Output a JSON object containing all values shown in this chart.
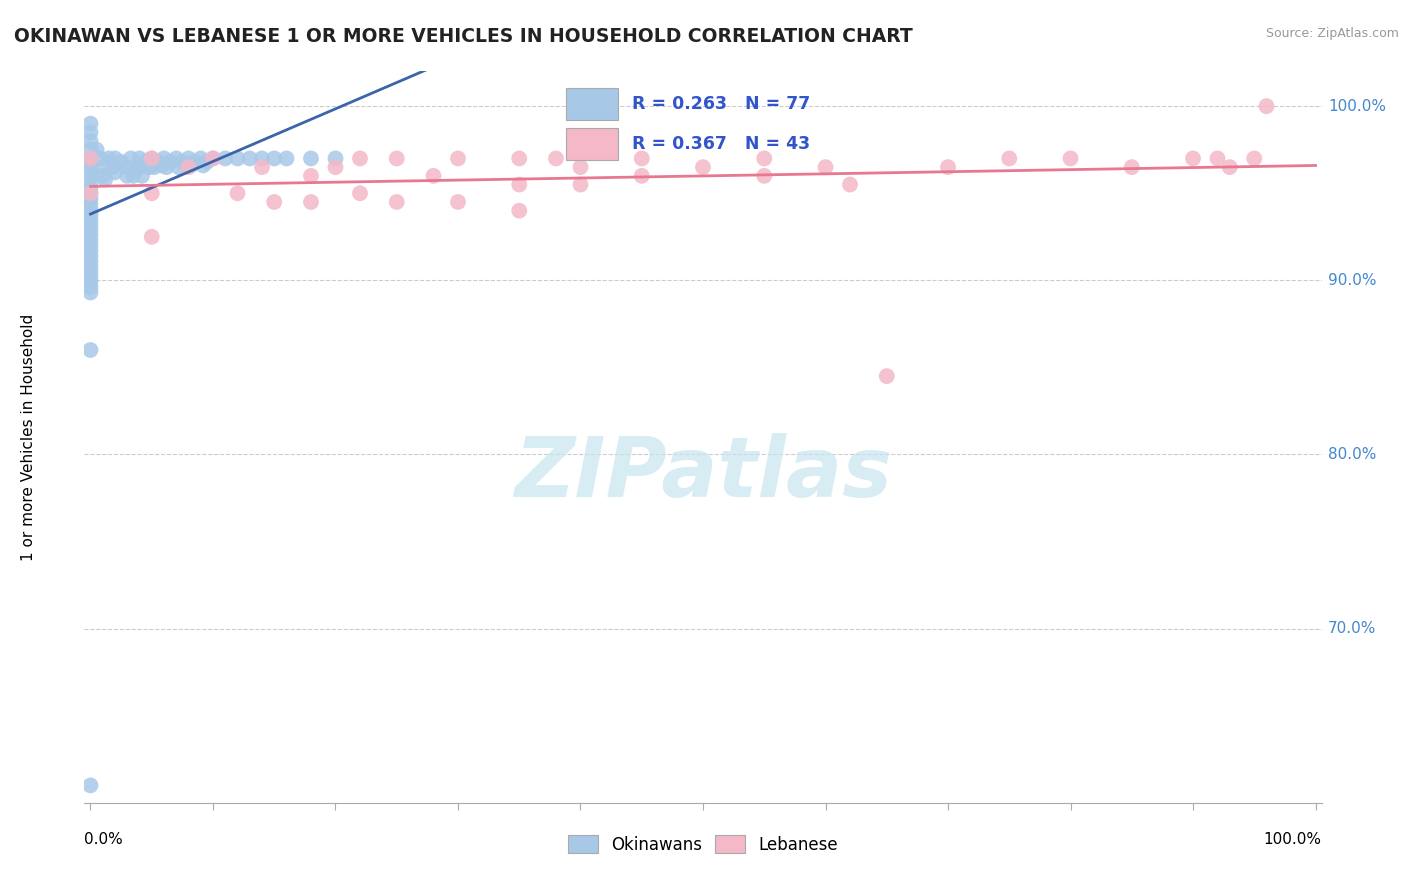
{
  "title": "OKINAWAN VS LEBANESE 1 OR MORE VEHICLES IN HOUSEHOLD CORRELATION CHART",
  "source": "Source: ZipAtlas.com",
  "ylabel": "1 or more Vehicles in Household",
  "r_okinawan": 0.263,
  "n_okinawan": 77,
  "r_lebanese": 0.367,
  "n_lebanese": 43,
  "okinawan_color": "#a8c8e8",
  "lebanese_color": "#f4b8c8",
  "okinawan_line_color": "#3a65a8",
  "lebanese_line_color": "#e87890",
  "legend_text_color": "#3355cc",
  "ytick_color": "#4488cc",
  "watermark_color": "#c8e4f0",
  "grid_color": "#cccccc",
  "okinawan_x": [
    0.0,
    0.0,
    0.0,
    0.0,
    0.0,
    0.0,
    0.0,
    0.0,
    0.0,
    0.0,
    0.0,
    0.0,
    0.0,
    0.0,
    0.0,
    0.0,
    0.0,
    0.0,
    0.0,
    0.0,
    0.0,
    0.0,
    0.0,
    0.0,
    0.0,
    0.0,
    0.0,
    0.0,
    0.0,
    0.0,
    0.005,
    0.008,
    0.01,
    0.01,
    0.012,
    0.015,
    0.018,
    0.02,
    0.02,
    0.025,
    0.03,
    0.03,
    0.033,
    0.035,
    0.038,
    0.04,
    0.04,
    0.042,
    0.045,
    0.048,
    0.05,
    0.052,
    0.055,
    0.058,
    0.06,
    0.062,
    0.065,
    0.07,
    0.072,
    0.075,
    0.08,
    0.082,
    0.085,
    0.09,
    0.092,
    0.095,
    0.1,
    0.11,
    0.12,
    0.13,
    0.14,
    0.15,
    0.16,
    0.18,
    0.2,
    0.0,
    0.0
  ],
  "okinawan_y": [
    0.99,
    0.985,
    0.98,
    0.975,
    0.97,
    0.967,
    0.964,
    0.96,
    0.956,
    0.953,
    0.95,
    0.947,
    0.944,
    0.941,
    0.938,
    0.935,
    0.932,
    0.929,
    0.926,
    0.923,
    0.92,
    0.917,
    0.914,
    0.911,
    0.908,
    0.905,
    0.902,
    0.899,
    0.896,
    0.893,
    0.975,
    0.97,
    0.965,
    0.96,
    0.958,
    0.97,
    0.965,
    0.97,
    0.962,
    0.968,
    0.965,
    0.96,
    0.97,
    0.96,
    0.965,
    0.97,
    0.965,
    0.96,
    0.968,
    0.965,
    0.97,
    0.965,
    0.968,
    0.966,
    0.97,
    0.965,
    0.968,
    0.97,
    0.965,
    0.968,
    0.97,
    0.966,
    0.968,
    0.97,
    0.966,
    0.968,
    0.97,
    0.97,
    0.97,
    0.97,
    0.97,
    0.97,
    0.97,
    0.97,
    0.97,
    0.86,
    0.61
  ],
  "lebanese_x": [
    0.0,
    0.0,
    0.05,
    0.05,
    0.05,
    0.08,
    0.1,
    0.12,
    0.14,
    0.15,
    0.18,
    0.18,
    0.2,
    0.22,
    0.22,
    0.25,
    0.25,
    0.28,
    0.3,
    0.3,
    0.35,
    0.35,
    0.35,
    0.38,
    0.4,
    0.4,
    0.45,
    0.45,
    0.5,
    0.55,
    0.55,
    0.6,
    0.62,
    0.65,
    0.7,
    0.75,
    0.8,
    0.85,
    0.9,
    0.92,
    0.93,
    0.95,
    0.96
  ],
  "lebanese_y": [
    0.97,
    0.95,
    0.97,
    0.95,
    0.925,
    0.965,
    0.97,
    0.95,
    0.965,
    0.945,
    0.96,
    0.945,
    0.965,
    0.97,
    0.95,
    0.97,
    0.945,
    0.96,
    0.97,
    0.945,
    0.97,
    0.955,
    0.94,
    0.97,
    0.965,
    0.955,
    0.97,
    0.96,
    0.965,
    0.97,
    0.96,
    0.965,
    0.955,
    0.845,
    0.965,
    0.97,
    0.97,
    0.965,
    0.97,
    0.97,
    0.965,
    0.97,
    1.0
  ],
  "ylim_min": 0.6,
  "ylim_max": 1.02,
  "xlim_min": -0.005,
  "xlim_max": 1.005,
  "y_ticks": [
    0.7,
    0.8,
    0.9,
    1.0
  ],
  "y_tick_labels": [
    "70.0%",
    "80.0%",
    "90.0%",
    "100.0%"
  ]
}
